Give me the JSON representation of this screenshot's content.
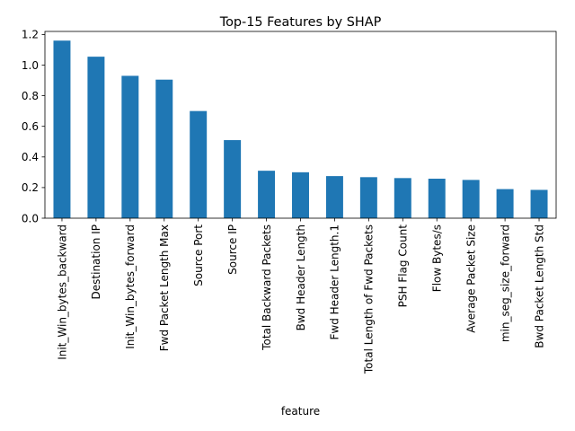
{
  "chart_data": {
    "type": "bar",
    "title": "Top-15 Features by SHAP",
    "xlabel": "feature",
    "ylabel": "",
    "ylim": [
      0,
      1.22
    ],
    "yticks": [
      "0.0",
      "0.2",
      "0.4",
      "0.6",
      "0.8",
      "1.0",
      "1.2"
    ],
    "grid": false,
    "legend": "none",
    "bar_color": "#1f77b4",
    "categories": [
      "Init_Win_bytes_backward",
      "Destination IP",
      "Init_Win_bytes_forward",
      "Fwd Packet Length Max",
      "Source Port",
      "Source IP",
      "Total Backward Packets",
      "Bwd Header Length",
      "Fwd Header Length.1",
      "Total Length of Fwd Packets",
      "PSH Flag Count",
      "Flow Bytes/s",
      "Average Packet Size",
      "min_seg_size_forward",
      "Bwd Packet Length Std"
    ],
    "values": [
      1.16,
      1.055,
      0.93,
      0.905,
      0.7,
      0.51,
      0.31,
      0.3,
      0.275,
      0.268,
      0.262,
      0.258,
      0.25,
      0.19,
      0.185
    ]
  }
}
